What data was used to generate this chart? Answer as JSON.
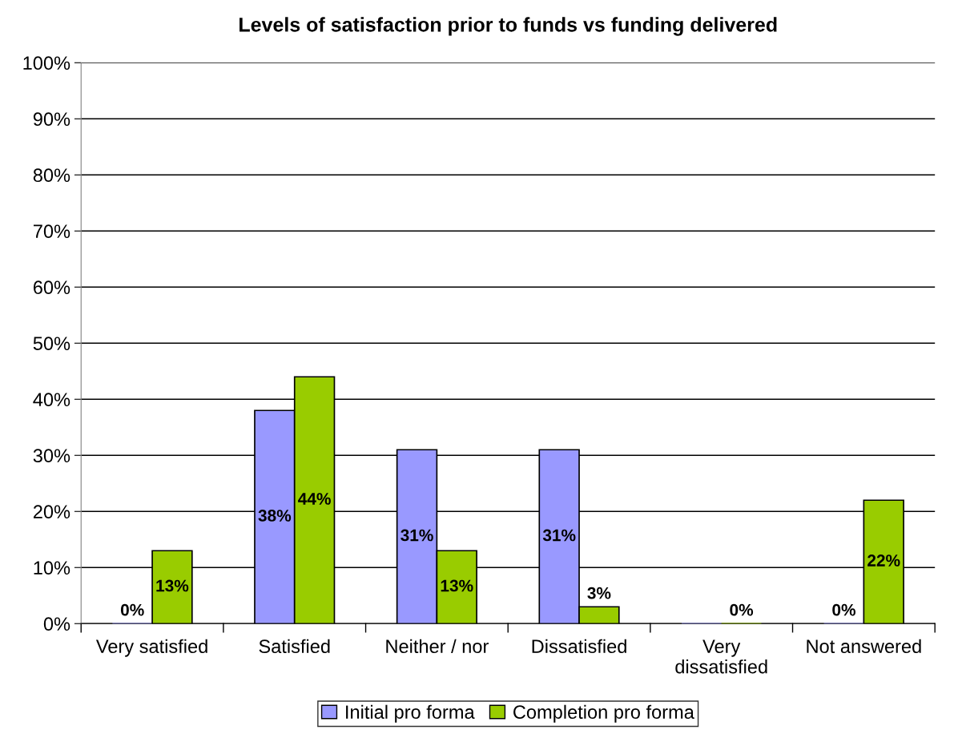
{
  "chart_data": {
    "type": "bar",
    "title": "Levels of satisfaction prior to funds vs funding delivered",
    "categories": [
      "Very satisfied",
      "Satisfied",
      "Neither / nor",
      "Dissatisfied",
      "Very\ndissatisfied",
      "Not answered"
    ],
    "series": [
      {
        "name": "Initial pro forma",
        "color": "#9999ff",
        "values": [
          0,
          38,
          31,
          31,
          0,
          0
        ],
        "value_labels": [
          "0%",
          "38%",
          "31%",
          "31%",
          null,
          "0%"
        ]
      },
      {
        "name": "Completion pro forma",
        "color": "#99cc00",
        "values": [
          13,
          44,
          13,
          3,
          0,
          22
        ],
        "value_labels": [
          "13%",
          "44%",
          "13%",
          "3%",
          "0%",
          "22%"
        ]
      }
    ],
    "ylim": [
      0,
      100
    ],
    "yticks": [
      {
        "value": 0,
        "label": "0%"
      },
      {
        "value": 10,
        "label": "10%"
      },
      {
        "value": 20,
        "label": "20%"
      },
      {
        "value": 30,
        "label": "30%"
      },
      {
        "value": 40,
        "label": "40%"
      },
      {
        "value": 50,
        "label": "50%"
      },
      {
        "value": 60,
        "label": "60%"
      },
      {
        "value": 70,
        "label": "70%"
      },
      {
        "value": 80,
        "label": "80%"
      },
      {
        "value": 90,
        "label": "90%"
      },
      {
        "value": 100,
        "label": "100%"
      }
    ],
    "grid": "y",
    "legend": "bottom"
  }
}
